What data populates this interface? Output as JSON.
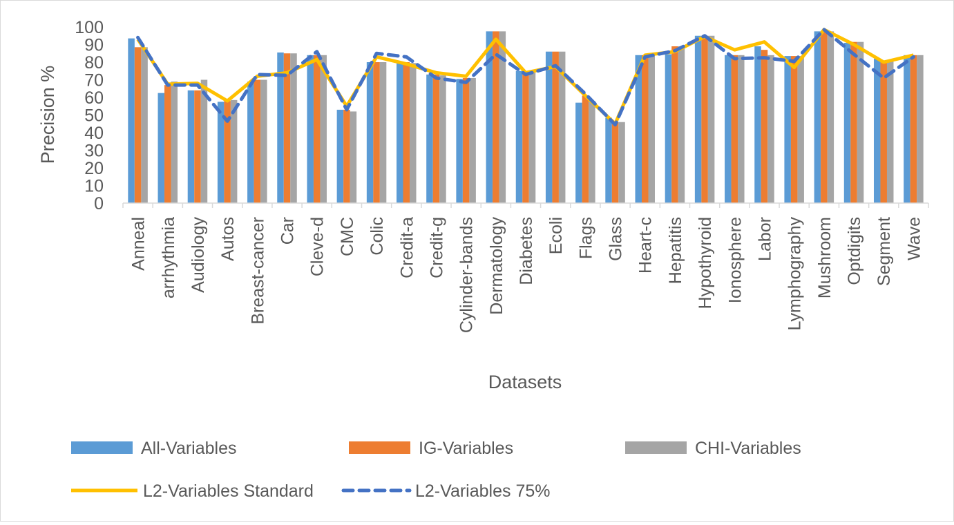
{
  "chart_data": {
    "type": "bar",
    "xlabel": "Datasets",
    "ylabel": "Precision %",
    "ylim": [
      0,
      100
    ],
    "yticks": [
      0,
      10,
      20,
      30,
      40,
      50,
      60,
      70,
      80,
      90,
      100
    ],
    "grid": false,
    "legend_position": "bottom",
    "categories": [
      "Anneal",
      "arrhythmia",
      "Audiology",
      "Autos",
      "Breast-cancer",
      "Car",
      "Cleve-d",
      "CMC",
      "Colic",
      "Credit-a",
      "Credit-g",
      "Cylinder-bands",
      "Dermatology",
      "Diabetes",
      "Ecoli",
      "Flags",
      "Glass",
      "Heart-c",
      "Hepatitis",
      "Hypothyroid",
      "Ionosphere",
      "Labor",
      "Lymphography",
      "Mushroom",
      "Optdigits",
      "Segment",
      "Wave"
    ],
    "series": [
      {
        "name": "All-Variables",
        "kind": "bar",
        "color": "#5B9BD5",
        "values": [
          93.5,
          62.5,
          64,
          57.5,
          69,
          85.5,
          84,
          53,
          80,
          80,
          73,
          70.5,
          97.5,
          75,
          86,
          57,
          48.5,
          84,
          84.5,
          95,
          84,
          89,
          83.5,
          97.5,
          91,
          82,
          84
        ]
      },
      {
        "name": "IG-Variables",
        "kind": "bar",
        "color": "#ED7D31",
        "values": [
          88.5,
          67,
          64,
          58,
          70,
          85,
          84,
          53,
          80,
          80,
          73,
          71,
          97.5,
          75,
          86,
          61,
          46,
          84,
          89,
          95,
          84,
          87,
          83.5,
          97.5,
          91.5,
          81,
          84
        ]
      },
      {
        "name": "CHI-Variables",
        "kind": "bar",
        "color": "#A5A5A5",
        "values": [
          88.5,
          69,
          70,
          58.5,
          70,
          85,
          84,
          52,
          80,
          79.5,
          72.5,
          71,
          97.5,
          75,
          86,
          58,
          46,
          84,
          89,
          95,
          84,
          84,
          83.5,
          97.5,
          91.5,
          81,
          84
        ]
      },
      {
        "name": "L2-Variables Standard",
        "kind": "line",
        "color": "#FFC000",
        "dash": false,
        "values": [
          93,
          67.5,
          68,
          58,
          72,
          74,
          81.5,
          55,
          83,
          79,
          74,
          72,
          93,
          74,
          77.5,
          61,
          45,
          84,
          86,
          94.5,
          87,
          91.5,
          77,
          98.5,
          90,
          80,
          84
        ]
      },
      {
        "name": "L2-Variables 75%",
        "kind": "line",
        "color": "#4472C4",
        "dash": true,
        "values": [
          94,
          67,
          67,
          46.5,
          73,
          72.5,
          86,
          53,
          85,
          83,
          71,
          68.5,
          84.5,
          73,
          78,
          62,
          44.5,
          83,
          86.5,
          95,
          82,
          82.5,
          80.5,
          98.5,
          84.5,
          71,
          83
        ]
      }
    ]
  }
}
